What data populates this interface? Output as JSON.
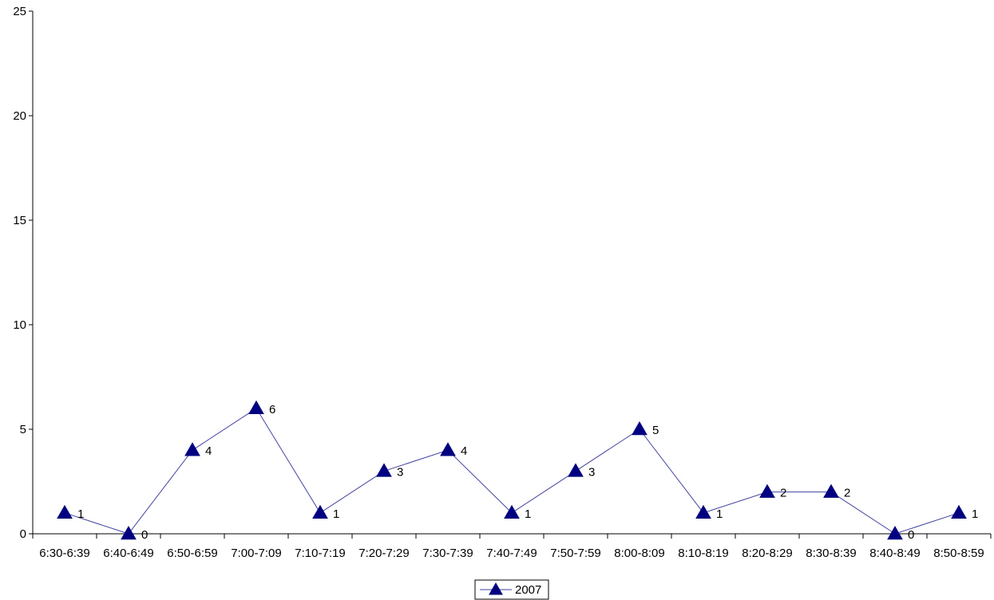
{
  "chart_data": {
    "type": "line",
    "categories": [
      "6:30-6:39",
      "6:40-6:49",
      "6:50-6:59",
      "7:00-7:09",
      "7:10-7:19",
      "7:20-7:29",
      "7:30-7:39",
      "7:40-7:49",
      "7:50-7:59",
      "8:00-8:09",
      "8:10-8:19",
      "8:20-8:29",
      "8:30-8:39",
      "8:40-8:49",
      "8:50-8:59"
    ],
    "series": [
      {
        "name": "2007",
        "values": [
          1,
          0,
          4,
          6,
          1,
          3,
          4,
          1,
          3,
          5,
          1,
          2,
          2,
          0,
          1
        ],
        "color": "#000080",
        "line_color": "#4040a0",
        "marker": "triangle"
      }
    ],
    "yticks": [
      0,
      5,
      10,
      15,
      20,
      25
    ],
    "ylim": [
      0,
      25
    ],
    "title": "",
    "xlabel": "",
    "ylabel": "",
    "grid": false,
    "legend": "bottom-center",
    "data_labels": true
  }
}
